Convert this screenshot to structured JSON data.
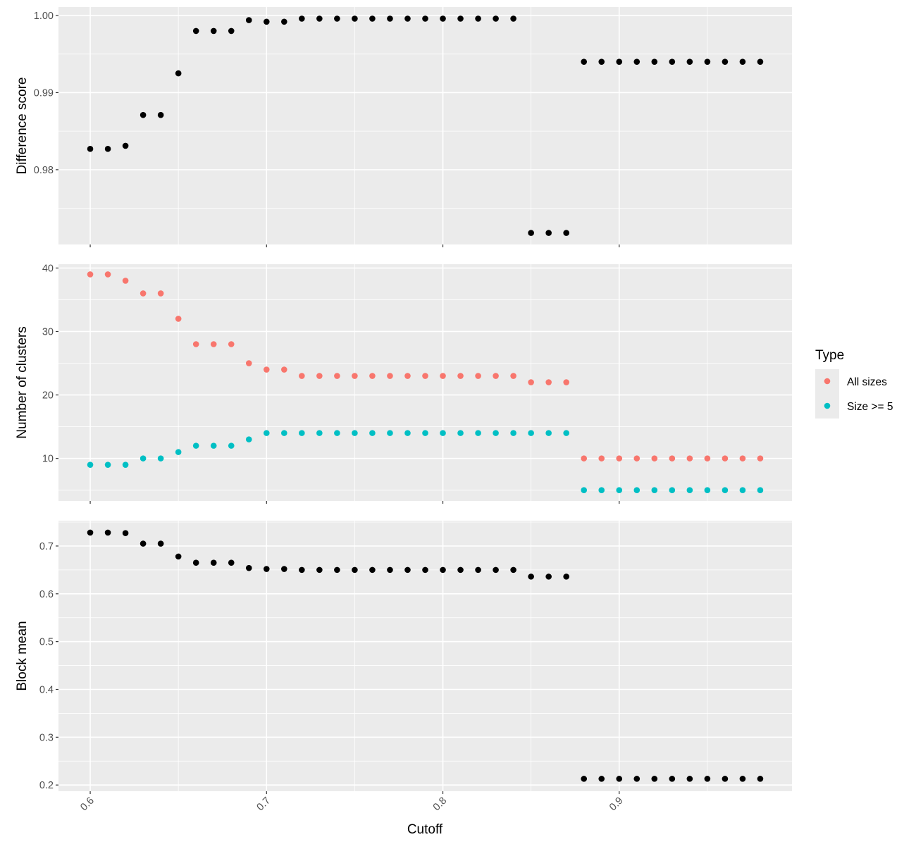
{
  "chart_data": {
    "type": "scatter",
    "xlabel": "Cutoff",
    "xlim": [
      0.582,
      0.998
    ],
    "xticks": [
      0.6,
      0.7,
      0.8,
      0.9
    ],
    "xtick_labels": [
      "0.6",
      "0.7",
      "0.8",
      "0.9"
    ],
    "x": [
      0.6,
      0.61,
      0.62,
      0.63,
      0.64,
      0.65,
      0.66,
      0.67,
      0.68,
      0.69,
      0.7,
      0.71,
      0.72,
      0.73,
      0.74,
      0.75,
      0.76,
      0.77,
      0.78,
      0.79,
      0.8,
      0.81,
      0.82,
      0.83,
      0.84,
      0.85,
      0.86,
      0.87,
      0.88,
      0.89,
      0.9,
      0.91,
      0.92,
      0.93,
      0.94,
      0.95,
      0.96,
      0.97,
      0.98
    ],
    "grid": true,
    "panels": [
      {
        "ylabel": "Difference score",
        "ylim": [
          0.9703,
          1.0011
        ],
        "yticks": [
          0.98,
          0.99,
          1.0
        ],
        "ytick_labels": [
          "0.98",
          "0.99",
          "1.00"
        ],
        "series": [
          {
            "color": "#000000",
            "values": [
              0.9827,
              0.9827,
              0.9831,
              0.9871,
              0.9871,
              0.9925,
              0.998,
              0.998,
              0.998,
              0.9994,
              0.9992,
              0.9992,
              0.9996,
              0.9996,
              0.9996,
              0.9996,
              0.9996,
              0.9996,
              0.9996,
              0.9996,
              0.9996,
              0.9996,
              0.9996,
              0.9996,
              0.9996,
              0.9718,
              0.9718,
              0.9718,
              0.994,
              0.994,
              0.994,
              0.994,
              0.994,
              0.994,
              0.994,
              0.994,
              0.994,
              0.994,
              0.994
            ]
          }
        ]
      },
      {
        "ylabel": "Number of clusters",
        "ylim": [
          3.3,
          40.6
        ],
        "yticks": [
          10,
          20,
          30,
          40
        ],
        "ytick_labels": [
          "10",
          "20",
          "30",
          "40"
        ],
        "series": [
          {
            "name": "All sizes",
            "color": "#F8766D",
            "values": [
              39,
              39,
              38,
              36,
              36,
              32,
              28,
              28,
              28,
              25,
              24,
              24,
              23,
              23,
              23,
              23,
              23,
              23,
              23,
              23,
              23,
              23,
              23,
              23,
              23,
              22,
              22,
              22,
              10,
              10,
              10,
              10,
              10,
              10,
              10,
              10,
              10,
              10,
              10
            ]
          },
          {
            "name": "Size >= 5",
            "color": "#00BFC4",
            "values": [
              9,
              9,
              9,
              10,
              10,
              11,
              12,
              12,
              12,
              13,
              14,
              14,
              14,
              14,
              14,
              14,
              14,
              14,
              14,
              14,
              14,
              14,
              14,
              14,
              14,
              14,
              14,
              14,
              5,
              5,
              5,
              5,
              5,
              5,
              5,
              5,
              5,
              5,
              5
            ]
          }
        ]
      },
      {
        "ylabel": "Block mean",
        "ylim": [
          0.187,
          0.753
        ],
        "yticks": [
          0.2,
          0.3,
          0.4,
          0.5,
          0.6,
          0.7
        ],
        "ytick_labels": [
          "0.2",
          "0.3",
          "0.4",
          "0.5",
          "0.6",
          "0.7"
        ],
        "series": [
          {
            "color": "#000000",
            "values": [
              0.728,
              0.728,
              0.727,
              0.705,
              0.705,
              0.678,
              0.665,
              0.665,
              0.665,
              0.654,
              0.652,
              0.652,
              0.65,
              0.65,
              0.65,
              0.65,
              0.65,
              0.65,
              0.65,
              0.65,
              0.65,
              0.65,
              0.65,
              0.65,
              0.65,
              0.636,
              0.636,
              0.636,
              0.213,
              0.213,
              0.213,
              0.213,
              0.213,
              0.213,
              0.213,
              0.213,
              0.213,
              0.213,
              0.213
            ]
          }
        ]
      }
    ],
    "legend": {
      "title": "Type",
      "position": "right",
      "entries": [
        {
          "label": "All sizes",
          "color": "#F8766D"
        },
        {
          "label": "Size >= 5",
          "color": "#00BFC4"
        }
      ]
    }
  }
}
